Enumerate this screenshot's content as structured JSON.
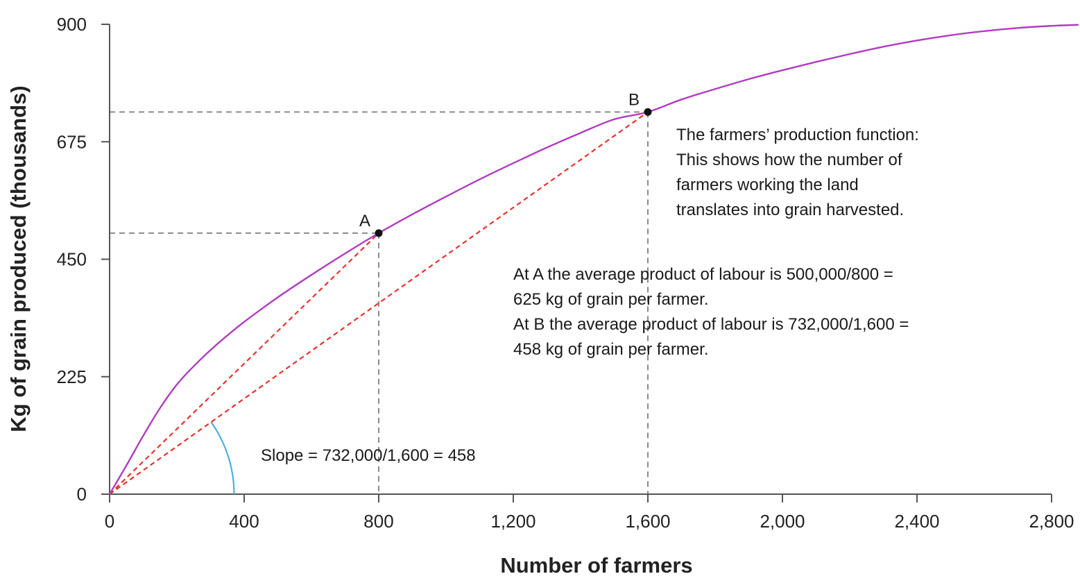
{
  "chart_data": {
    "type": "line",
    "xlabel": "Number of farmers",
    "ylabel": "Kg of grain produced (thousands)",
    "xlim": [
      0,
      2800
    ],
    "ylim": [
      0,
      900
    ],
    "x_ticks": [
      0,
      400,
      800,
      1200,
      1600,
      2000,
      2400,
      2800
    ],
    "x_tick_labels": [
      "0",
      "400",
      "800",
      "1,200",
      "1,600",
      "2,000",
      "2,400",
      "2,800"
    ],
    "y_ticks": [
      0,
      225,
      450,
      675,
      900
    ],
    "y_tick_labels": [
      "0",
      "225",
      "450",
      "675",
      "900"
    ],
    "grid": false,
    "series": [
      {
        "color": "#b03cc0",
        "x": [
          0,
          50,
          100,
          150,
          200,
          250,
          300,
          350,
          400,
          500,
          600,
          700,
          800,
          900,
          1000,
          1100,
          1200,
          1300,
          1400,
          1500,
          1600,
          1700,
          1800,
          1900,
          2000,
          2100,
          2200,
          2300,
          2400,
          2500,
          2600,
          2700,
          2800,
          2880
        ],
        "y": [
          0,
          55,
          112,
          165,
          210,
          245,
          276,
          304,
          330,
          377,
          420,
          461,
          500,
          536,
          570,
          603,
          634,
          664,
          692,
          718,
          732,
          756,
          776,
          795,
          812,
          828,
          843,
          857,
          869,
          879,
          887,
          893,
          897,
          899
        ]
      }
    ],
    "points": [
      {
        "label": "A",
        "x": 800,
        "y": 500
      },
      {
        "label": "B",
        "x": 1600,
        "y": 732
      }
    ],
    "rays": [
      {
        "to_x": 800,
        "to_y": 500,
        "color": "#e8322a"
      },
      {
        "to_x": 1600,
        "to_y": 732,
        "color": "#e8322a"
      }
    ],
    "angle_arc": {
      "center_x": 0,
      "center_y": 0,
      "radius_x": 370,
      "color": "#3aa8e0"
    },
    "annotations": [
      {
        "id": "production-function-note",
        "lines": [
          "The farmers’ production function:",
          "This shows how the number of",
          "farmers working the land",
          "translates into grain harvested."
        ]
      },
      {
        "id": "average-product-note",
        "lines": [
          "At A the average product of labour is 500,000/800 =",
          "625 kg of grain per farmer.",
          "At B the average product of labour is 732,000/1,600 =",
          "458 kg of grain per farmer."
        ]
      },
      {
        "id": "slope-note",
        "lines": [
          "Slope = 732,000/1,600 = 458"
        ]
      }
    ]
  }
}
